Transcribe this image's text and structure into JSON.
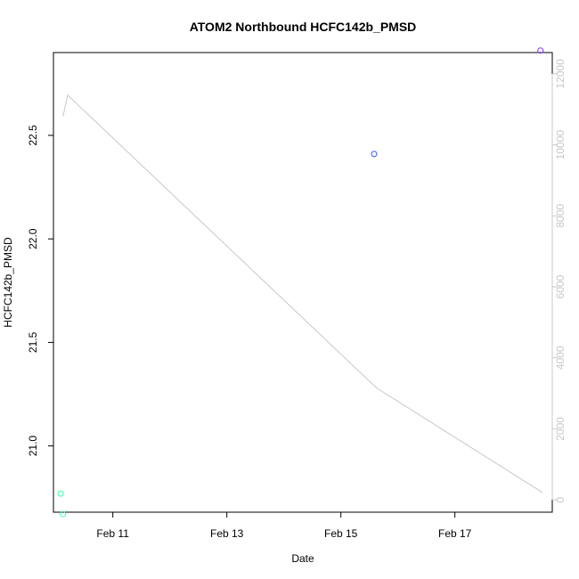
{
  "chart_data": {
    "type": "scatter",
    "title": "ATOM2 Northbound HCFC142b_PMSD",
    "xlabel": "Date",
    "ylabel": "HCFC142b_PMSD",
    "x_ticks": [
      "Feb 11",
      "Feb 13",
      "Feb 15",
      "Feb 17"
    ],
    "y_ticks": [
      "21.0",
      "21.5",
      "22.0",
      "22.5"
    ],
    "y2_ticks": [
      "0",
      "2000",
      "4000",
      "6000",
      "8000",
      "10000",
      "12000"
    ],
    "xlim": [
      "2016-02-09 23:00",
      "2016-02-18 17:00"
    ],
    "ylim": [
      20.68,
      22.9
    ],
    "y2lim": [
      -350,
      12600
    ],
    "points": [
      {
        "x": "2016-02-10 02:00",
        "y": 20.77,
        "color": "#33ffaa"
      },
      {
        "x": "2016-02-10 03:00",
        "y": 20.67,
        "color": "#33ffaa"
      },
      {
        "x": "2016-02-15 14:00",
        "y": 22.41,
        "color": "#3355ff"
      },
      {
        "x": "2016-02-18 12:00",
        "y": 22.91,
        "color": "#8833ff"
      }
    ],
    "line": {
      "axis": "right",
      "color": "#c8c8c8",
      "points": [
        {
          "x": "2016-02-10 03:00",
          "y": 10800
        },
        {
          "x": "2016-02-10 05:00",
          "y": 11400
        },
        {
          "x": "2016-02-15 15:00",
          "y": 3150
        },
        {
          "x": "2016-02-18 13:00",
          "y": 200
        }
      ]
    }
  }
}
